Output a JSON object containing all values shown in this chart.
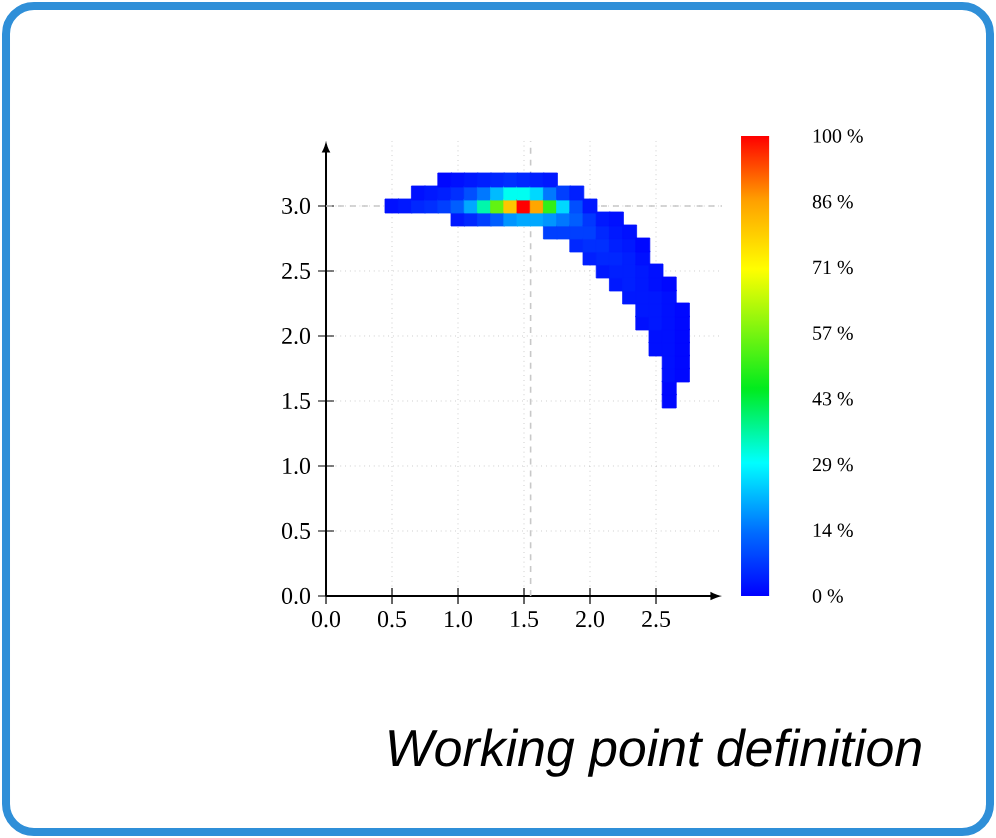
{
  "chart_data": {
    "type": "scatter",
    "marker": "square",
    "grid": true,
    "xlim": [
      0,
      3.0
    ],
    "ylim": [
      0,
      3.5
    ],
    "xticks": [
      {
        "value": 0,
        "label": "0.0"
      },
      {
        "value": 0.5,
        "label": "0.5"
      },
      {
        "value": 1,
        "label": "1.0"
      },
      {
        "value": 1.5,
        "label": "1.5"
      },
      {
        "value": 2,
        "label": "2.0"
      },
      {
        "value": 2.5,
        "label": "2.5"
      }
    ],
    "yticks": [
      {
        "value": 0,
        "label": "0.0"
      },
      {
        "value": 0.5,
        "label": "0.5"
      },
      {
        "value": 1,
        "label": "1.0"
      },
      {
        "value": 1.5,
        "label": "1.5"
      },
      {
        "value": 2,
        "label": "2.0"
      },
      {
        "value": 2.5,
        "label": "2.5"
      },
      {
        "value": 3,
        "label": "3.0"
      }
    ],
    "clim": [
      0,
      100
    ],
    "cticks": [
      {
        "value": 0,
        "label": "0 %"
      },
      {
        "value": 14.29,
        "label": "14 %"
      },
      {
        "value": 28.57,
        "label": "29 %"
      },
      {
        "value": 42.86,
        "label": "43 %"
      },
      {
        "value": 57.14,
        "label": "57 %"
      },
      {
        "value": 71.43,
        "label": "71 %"
      },
      {
        "value": 85.71,
        "label": "86 %"
      },
      {
        "value": 100,
        "label": "100 %"
      }
    ],
    "ref_lines": [
      {
        "axis": "x",
        "value": 1.55,
        "color": "#c8c8c8",
        "line_style": "dashed"
      },
      {
        "axis": "y",
        "value": 3.0,
        "color": "#c8c8c8",
        "line_style": "dashed"
      }
    ],
    "annotations": [
      "Working point definition"
    ],
    "x": [
      0.5,
      0.6,
      0.7,
      0.7,
      0.8,
      0.8,
      0.9,
      0.9,
      0.9,
      1.0,
      1.0,
      1.0,
      1.0,
      1.1,
      1.1,
      1.1,
      1.1,
      1.2,
      1.2,
      1.2,
      1.2,
      1.3,
      1.3,
      1.3,
      1.3,
      1.4,
      1.4,
      1.4,
      1.4,
      1.5,
      1.5,
      1.5,
      1.5,
      1.6,
      1.6,
      1.6,
      1.6,
      1.7,
      1.7,
      1.7,
      1.7,
      1.7,
      1.8,
      1.8,
      1.8,
      1.8,
      1.9,
      1.9,
      1.9,
      1.9,
      1.9,
      2.0,
      2.0,
      2.0,
      2.0,
      2.0,
      2.1,
      2.1,
      2.1,
      2.1,
      2.1,
      2.2,
      2.2,
      2.2,
      2.2,
      2.2,
      2.2,
      2.3,
      2.3,
      2.3,
      2.3,
      2.3,
      2.3,
      2.4,
      2.4,
      2.4,
      2.4,
      2.4,
      2.4,
      2.4,
      2.5,
      2.5,
      2.5,
      2.5,
      2.5,
      2.5,
      2.5,
      2.6,
      2.6,
      2.6,
      2.6,
      2.6,
      2.6,
      2.6,
      2.6,
      2.6,
      2.6,
      2.7,
      2.7,
      2.7,
      2.7,
      2.7,
      2.7
    ],
    "values": [
      3.0,
      3.0,
      3.0,
      3.1,
      3.0,
      3.1,
      3.0,
      3.1,
      3.2,
      2.9,
      3.0,
      3.1,
      3.2,
      2.9,
      3.0,
      3.1,
      3.2,
      2.9,
      3.0,
      3.1,
      3.2,
      2.9,
      3.0,
      3.1,
      3.2,
      2.9,
      3.0,
      3.1,
      3.2,
      2.9,
      3.0,
      3.1,
      3.2,
      2.9,
      3.0,
      3.1,
      3.2,
      2.8,
      2.9,
      3.0,
      3.1,
      3.2,
      2.8,
      2.9,
      3.0,
      3.1,
      2.7,
      2.8,
      2.9,
      3.0,
      3.1,
      2.6,
      2.7,
      2.8,
      2.9,
      3.0,
      2.5,
      2.6,
      2.7,
      2.8,
      2.9,
      2.4,
      2.5,
      2.6,
      2.7,
      2.8,
      2.9,
      2.3,
      2.4,
      2.5,
      2.6,
      2.7,
      2.8,
      2.1,
      2.2,
      2.3,
      2.4,
      2.5,
      2.6,
      2.7,
      1.9,
      2.0,
      2.1,
      2.2,
      2.3,
      2.4,
      2.5,
      1.5,
      1.6,
      1.7,
      1.8,
      1.9,
      2.0,
      2.1,
      2.2,
      2.3,
      2.4,
      1.7,
      1.8,
      1.9,
      2.0,
      2.1,
      2.2
    ],
    "cvalues": [
      2,
      3,
      5,
      2,
      6,
      3,
      8,
      4,
      1,
      3,
      12,
      6,
      2,
      5,
      20,
      10,
      3,
      8,
      35,
      15,
      4,
      12,
      55,
      22,
      5,
      18,
      80,
      30,
      6,
      20,
      100,
      30,
      5,
      20,
      85,
      25,
      4,
      8,
      18,
      50,
      15,
      3,
      8,
      15,
      25,
      8,
      5,
      8,
      12,
      10,
      4,
      4,
      6,
      8,
      7,
      3,
      3,
      5,
      6,
      5,
      3,
      3,
      4,
      5,
      4,
      3,
      2,
      3,
      4,
      4,
      4,
      3,
      2,
      2,
      3,
      3,
      3,
      3,
      2,
      1,
      2,
      2,
      3,
      3,
      3,
      2,
      2,
      1,
      1,
      2,
      2,
      2,
      2,
      2,
      2,
      2,
      1,
      1,
      1,
      1,
      1,
      1,
      1
    ]
  }
}
